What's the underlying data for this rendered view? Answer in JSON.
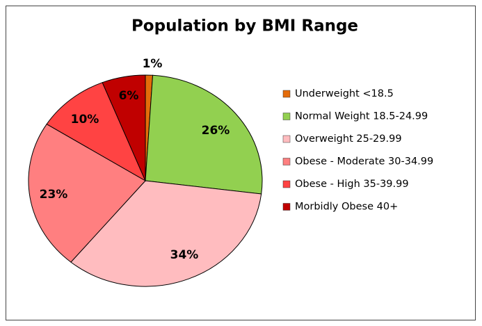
{
  "chart_data": {
    "type": "pie",
    "title": "Population by BMI Range",
    "categories": [
      "Underweight <18.5",
      "Normal Weight 18.5-24.99",
      "Overweight 25-29.99",
      "Obese - Moderate 30-34.99",
      "Obese - High 35-39.99",
      "Morbidly Obese 40+"
    ],
    "values": [
      1,
      26,
      34,
      23,
      10,
      6
    ],
    "value_labels": [
      "1%",
      "26%",
      "34%",
      "23%",
      "10%",
      "6%"
    ],
    "colors": [
      "#e46c0a",
      "#92d050",
      "#ffbcbf",
      "#ff7f80",
      "#ff4343",
      "#c00000"
    ],
    "legend": "right"
  }
}
